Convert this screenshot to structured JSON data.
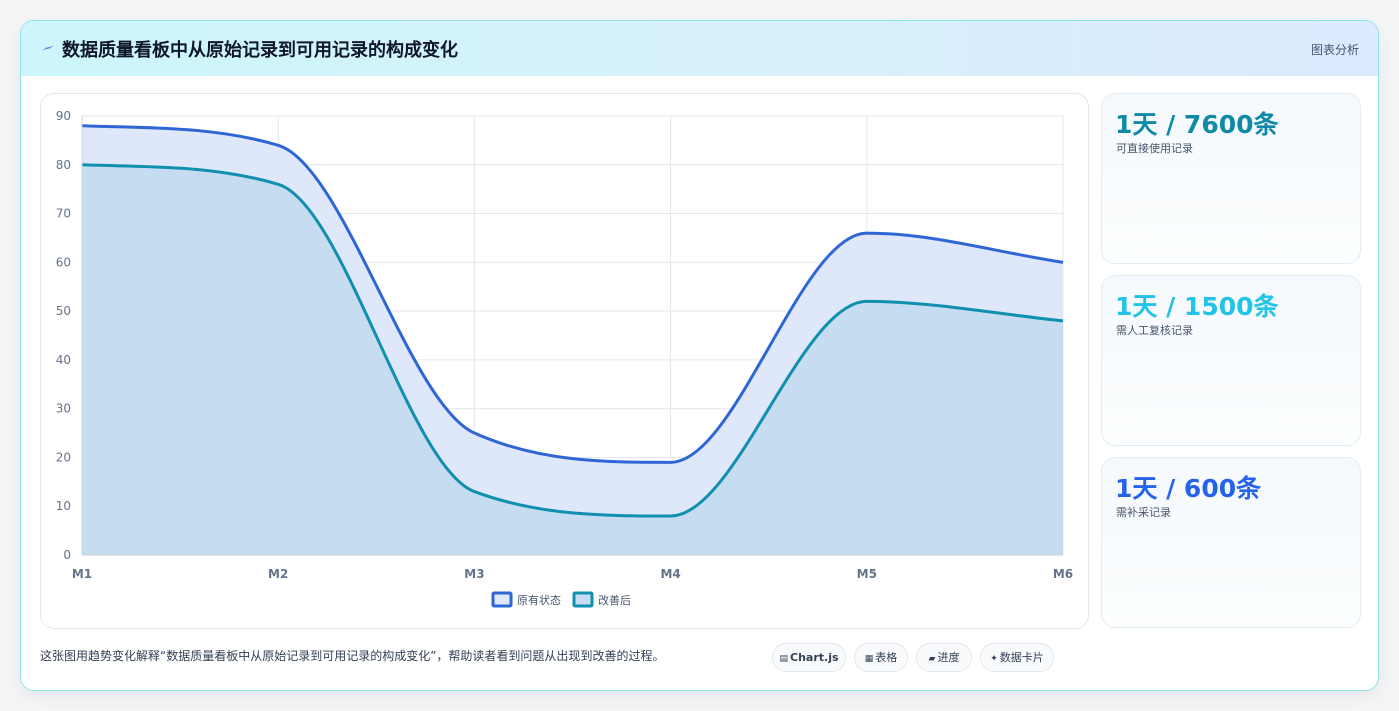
{
  "header": {
    "title": "数据质量看板中从原始记录到可用记录的构成变化",
    "tag": "图表分析",
    "icon": "lightning-icon"
  },
  "stats": [
    {
      "value": "1天 / 7600条",
      "label": "可直接使用记录",
      "color": "#0e8aa6"
    },
    {
      "value": "1天 / 1500条",
      "label": "需人工复核记录",
      "color": "#22c3e6"
    },
    {
      "value": "1天 / 600条",
      "label": "需补采记录",
      "color": "#2563eb"
    }
  ],
  "caption": "这张图用趋势变化解释“数据质量看板中从原始记录到可用记录的构成变化”，帮助读者看到问题从出现到改善的过程。",
  "chips": [
    {
      "icon": "chart-icon",
      "glyph": "▤",
      "label": "Chart.js"
    },
    {
      "icon": "table-icon",
      "glyph": "▦",
      "label": "表格"
    },
    {
      "icon": "progress-icon",
      "glyph": "▰",
      "label": "进度"
    },
    {
      "icon": "sparkle-icon",
      "glyph": "✦",
      "label": "数据卡片"
    }
  ],
  "chart_data": {
    "type": "area",
    "categories": [
      "M1",
      "M2",
      "M3",
      "M4",
      "M5",
      "M6"
    ],
    "series": [
      {
        "name": "原有状态",
        "values": [
          88,
          84,
          25,
          19,
          66,
          60
        ],
        "color": "#2f66d6",
        "fill": "#dfe8fb"
      },
      {
        "name": "改善后",
        "values": [
          80,
          76,
          13,
          8,
          52,
          48
        ],
        "color": "#118fae",
        "fill": "#c5dcf1"
      }
    ],
    "ylim": [
      0,
      90
    ],
    "yticks": [
      0,
      10,
      20,
      30,
      40,
      50,
      60,
      70,
      80,
      90
    ],
    "grid": true,
    "legend": "bottom"
  }
}
